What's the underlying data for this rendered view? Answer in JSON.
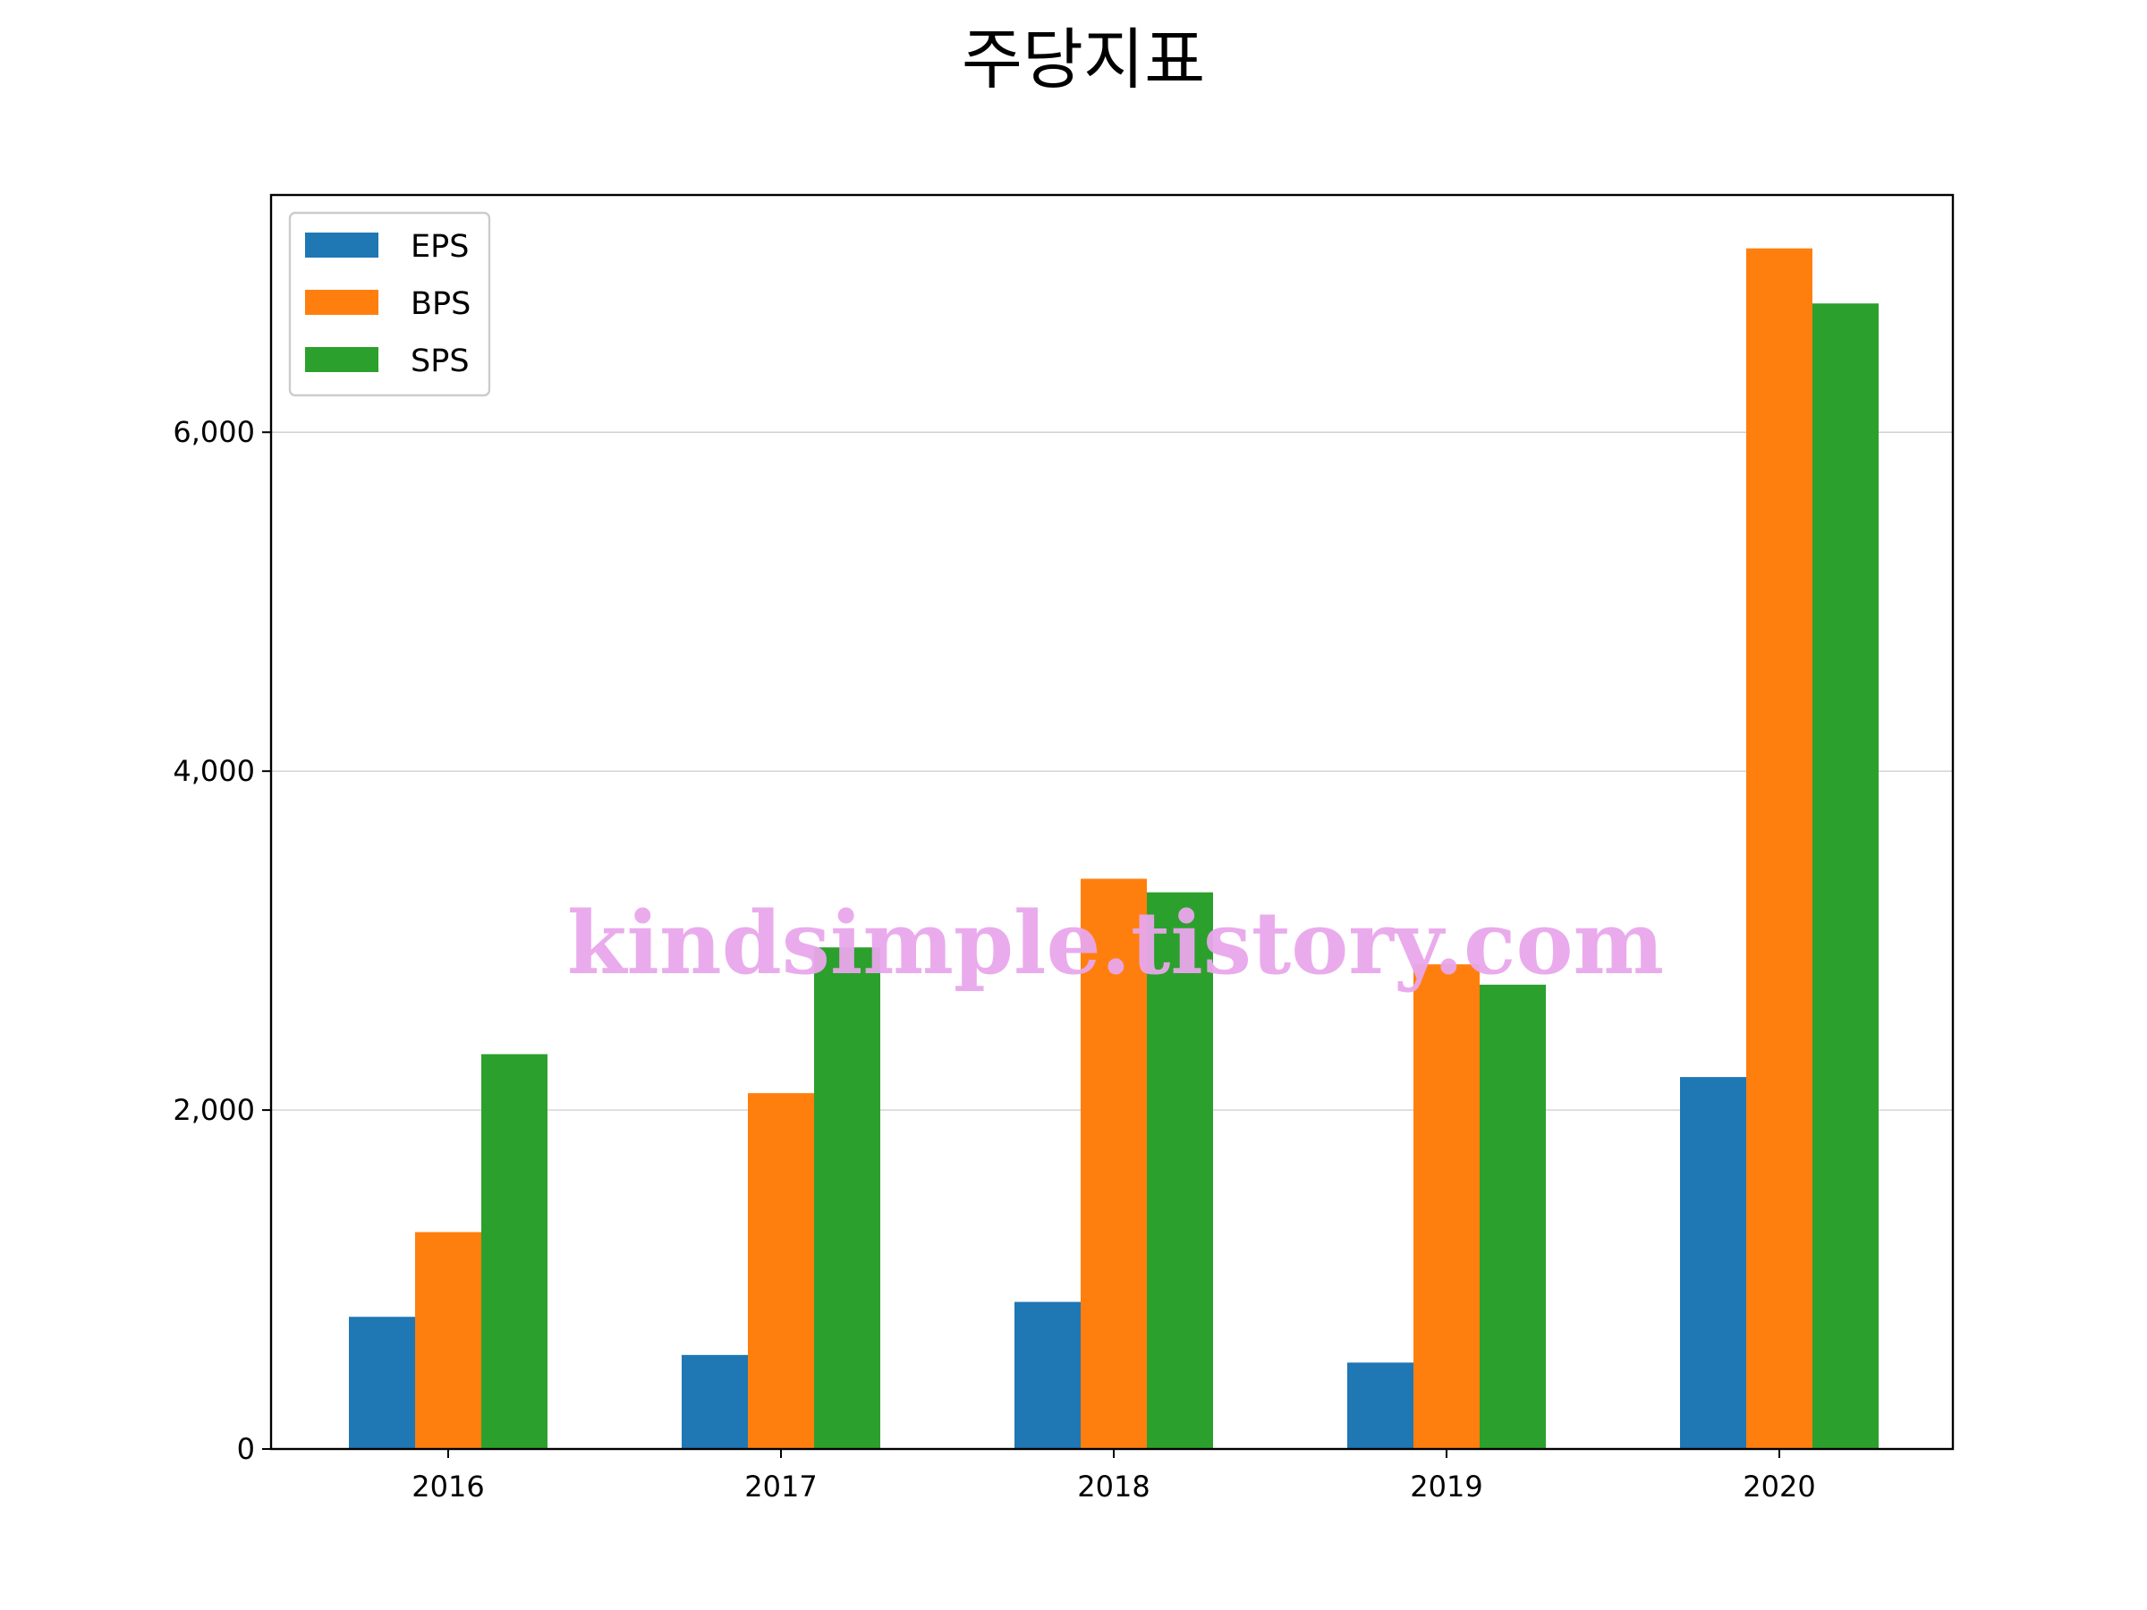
{
  "chart_data": {
    "type": "bar",
    "title": "주당지표",
    "xlabel": "",
    "ylabel": "",
    "categories": [
      "2016",
      "2017",
      "2018",
      "2019",
      "2020"
    ],
    "series": [
      {
        "name": "EPS",
        "color": "#1f77b4",
        "values": [
          780,
          555,
          868,
          510,
          2195
        ]
      },
      {
        "name": "BPS",
        "color": "#ff7f0e",
        "values": [
          1280,
          2100,
          3365,
          2860,
          7085
        ]
      },
      {
        "name": "SPS",
        "color": "#2ca02c",
        "values": [
          2330,
          2960,
          3285,
          2740,
          6760
        ]
      }
    ],
    "ylim": [
      0,
      7400
    ],
    "yticks": [
      0,
      2000,
      4000,
      6000
    ],
    "ytick_labels": [
      "0",
      "2,000",
      "4,000",
      "6,000"
    ],
    "grid": "horizontal",
    "legend_position": "top-left"
  },
  "watermark": {
    "text": "kindsimple.tistory.com",
    "color": "#e9a6ec"
  }
}
